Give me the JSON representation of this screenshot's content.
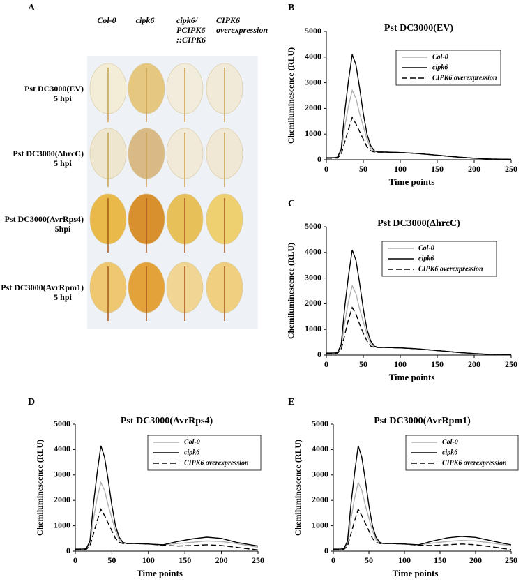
{
  "panel_a": {
    "label": "A",
    "columns": [
      [
        "Col-0"
      ],
      [
        "cipk6"
      ],
      [
        "cipk6/",
        "PCIPK6",
        "::CIPK6"
      ],
      [
        "CIPK6",
        "overexpression"
      ]
    ],
    "rows": [
      [
        "Pst DC3000(EV)",
        "5 hpi"
      ],
      [
        "Pst DC3000(ΔhrcC)",
        "5 hpi"
      ],
      [
        "Pst DC3000(AvrRps4)",
        "5hpi"
      ],
      [
        "Pst DC3000(AvrRpm1)",
        "5 hpi"
      ]
    ]
  },
  "chart_data": [
    {
      "type": "line",
      "label": "B",
      "title": "Pst DC3000(EV)",
      "x_label": "Time points",
      "y_label": "Chemiluminescence (RLU)",
      "x": [
        0,
        10,
        15,
        20,
        25,
        30,
        35,
        40,
        45,
        50,
        55,
        60,
        65,
        70,
        80,
        100,
        120,
        140,
        160,
        180,
        200,
        220,
        240,
        250
      ],
      "xlim": [
        0,
        250
      ],
      "xticks": [
        0,
        50,
        100,
        150,
        200,
        250
      ],
      "ylim": [
        0,
        5000
      ],
      "yticks": [
        0,
        1000,
        2000,
        3000,
        4000,
        5000
      ],
      "legend": "upper right",
      "series": [
        {
          "name": "Col-0",
          "color": "#b0b0b0",
          "style": "solid",
          "values": [
            80,
            80,
            90,
            300,
            1300,
            2100,
            2700,
            2400,
            1800,
            1300,
            800,
            450,
            320,
            300,
            300,
            280,
            250,
            200,
            150,
            100,
            60,
            30,
            20,
            20
          ]
        },
        {
          "name": "cipk6",
          "color": "#000000",
          "style": "solid",
          "values": [
            80,
            80,
            100,
            400,
            1900,
            3100,
            4100,
            3700,
            2800,
            1800,
            1000,
            550,
            350,
            300,
            300,
            280,
            250,
            200,
            150,
            100,
            60,
            30,
            20,
            20
          ]
        },
        {
          "name": "CIPK6 overexpression",
          "color": "#000000",
          "style": "dashed",
          "values": [
            60,
            60,
            70,
            200,
            700,
            1200,
            1650,
            1400,
            1100,
            800,
            500,
            350,
            300,
            300,
            300,
            280,
            250,
            200,
            150,
            100,
            60,
            30,
            20,
            20
          ]
        }
      ]
    },
    {
      "type": "line",
      "label": "C",
      "title": "Pst DC3000(ΔhrcC)",
      "x_label": "Time points",
      "y_label": "Chemiluminescence (RLU)",
      "x": [
        0,
        10,
        15,
        20,
        25,
        30,
        35,
        40,
        45,
        50,
        55,
        60,
        65,
        70,
        80,
        100,
        120,
        140,
        160,
        180,
        200,
        220,
        240,
        250
      ],
      "xlim": [
        0,
        250
      ],
      "xticks": [
        0,
        50,
        100,
        150,
        200,
        250
      ],
      "ylim": [
        0,
        5000
      ],
      "yticks": [
        0,
        1000,
        2000,
        3000,
        4000,
        5000
      ],
      "legend": "upper right",
      "series": [
        {
          "name": "Col-0",
          "color": "#b0b0b0",
          "style": "solid",
          "values": [
            80,
            80,
            90,
            300,
            1300,
            2100,
            2700,
            2400,
            1800,
            1300,
            800,
            450,
            320,
            300,
            300,
            280,
            250,
            200,
            150,
            100,
            60,
            30,
            20,
            20
          ]
        },
        {
          "name": "cipk6",
          "color": "#000000",
          "style": "solid",
          "values": [
            80,
            80,
            100,
            400,
            1900,
            3100,
            4100,
            3700,
            2800,
            1800,
            1000,
            550,
            350,
            300,
            300,
            280,
            250,
            200,
            150,
            100,
            60,
            30,
            20,
            20
          ]
        },
        {
          "name": "CIPK6 overexpression",
          "color": "#000000",
          "style": "dashed",
          "values": [
            60,
            60,
            70,
            200,
            800,
            1400,
            1850,
            1600,
            1200,
            850,
            550,
            350,
            300,
            300,
            300,
            280,
            250,
            200,
            150,
            100,
            60,
            30,
            20,
            20
          ]
        }
      ]
    },
    {
      "type": "line",
      "label": "D",
      "title": "Pst DC3000(AvrRps4)",
      "x_label": "Time points",
      "y_label": "Chemiluminescence (RLU)",
      "x": [
        0,
        10,
        15,
        20,
        25,
        30,
        35,
        40,
        45,
        50,
        55,
        60,
        65,
        70,
        80,
        100,
        120,
        140,
        160,
        180,
        200,
        220,
        240,
        250
      ],
      "xlim": [
        0,
        250
      ],
      "xticks": [
        0,
        50,
        100,
        150,
        200,
        250
      ],
      "ylim": [
        0,
        5000
      ],
      "yticks": [
        0,
        1000,
        2000,
        3000,
        4000,
        5000
      ],
      "legend": "upper right",
      "series": [
        {
          "name": "Col-0",
          "color": "#b0b0b0",
          "style": "solid",
          "values": [
            80,
            80,
            90,
            300,
            1300,
            2100,
            2700,
            2400,
            1800,
            1300,
            800,
            450,
            320,
            300,
            300,
            280,
            250,
            300,
            350,
            400,
            380,
            300,
            200,
            150
          ]
        },
        {
          "name": "cipk6",
          "color": "#000000",
          "style": "solid",
          "values": [
            80,
            80,
            100,
            400,
            1900,
            3100,
            4150,
            3700,
            2800,
            1800,
            1000,
            550,
            350,
            300,
            300,
            280,
            250,
            380,
            480,
            550,
            500,
            350,
            250,
            200
          ]
        },
        {
          "name": "CIPK6 overexpression",
          "color": "#000000",
          "style": "dashed",
          "values": [
            60,
            60,
            70,
            200,
            700,
            1200,
            1650,
            1400,
            1100,
            800,
            500,
            350,
            300,
            300,
            300,
            280,
            230,
            200,
            220,
            250,
            220,
            150,
            80,
            50
          ]
        }
      ]
    },
    {
      "type": "line",
      "label": "E",
      "title": "Pst DC3000(AvrRpm1)",
      "x_label": "Time points",
      "y_label": "Chemiluminescence (RLU)",
      "x": [
        0,
        10,
        15,
        20,
        25,
        30,
        35,
        40,
        45,
        50,
        55,
        60,
        65,
        70,
        80,
        100,
        120,
        140,
        160,
        180,
        200,
        220,
        240,
        250
      ],
      "xlim": [
        0,
        250
      ],
      "xticks": [
        0,
        50,
        100,
        150,
        200,
        250
      ],
      "ylim": [
        0,
        5000
      ],
      "yticks": [
        0,
        1000,
        2000,
        3000,
        4000,
        5000
      ],
      "legend": "upper right",
      "series": [
        {
          "name": "Col-0",
          "color": "#b0b0b0",
          "style": "solid",
          "values": [
            80,
            80,
            90,
            300,
            1300,
            2100,
            2700,
            2400,
            1800,
            1300,
            800,
            450,
            320,
            300,
            300,
            280,
            250,
            320,
            380,
            420,
            400,
            330,
            250,
            200
          ]
        },
        {
          "name": "cipk6",
          "color": "#000000",
          "style": "solid",
          "values": [
            80,
            80,
            100,
            400,
            1900,
            3100,
            4150,
            3700,
            2800,
            1800,
            1000,
            550,
            350,
            300,
            300,
            280,
            250,
            400,
            520,
            580,
            540,
            420,
            300,
            250
          ]
        },
        {
          "name": "CIPK6 overexpression",
          "color": "#000000",
          "style": "dashed",
          "values": [
            60,
            60,
            70,
            200,
            700,
            1200,
            1650,
            1400,
            1100,
            800,
            500,
            350,
            300,
            300,
            300,
            280,
            230,
            220,
            250,
            280,
            250,
            180,
            100,
            60
          ]
        }
      ]
    }
  ]
}
